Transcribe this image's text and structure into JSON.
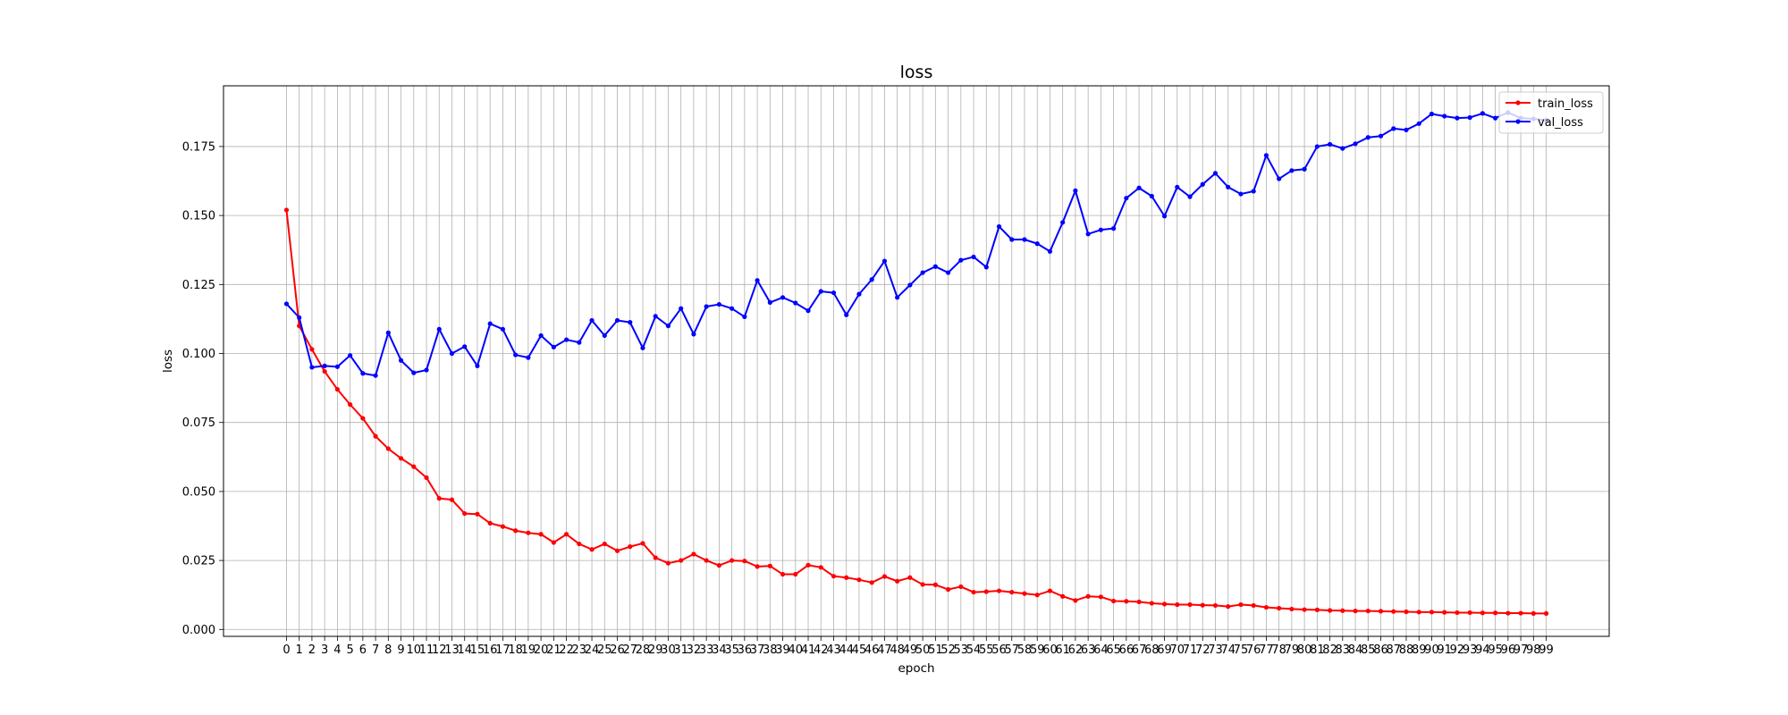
{
  "chart_data": {
    "type": "line",
    "title": "loss",
    "xlabel": "epoch",
    "ylabel": "loss",
    "x": [
      0,
      1,
      2,
      3,
      4,
      5,
      6,
      7,
      8,
      9,
      10,
      11,
      12,
      13,
      14,
      15,
      16,
      17,
      18,
      19,
      20,
      21,
      22,
      23,
      24,
      25,
      26,
      27,
      28,
      29,
      30,
      31,
      32,
      33,
      34,
      35,
      36,
      37,
      38,
      39,
      40,
      41,
      42,
      43,
      44,
      45,
      46,
      47,
      48,
      49,
      50,
      51,
      52,
      53,
      54,
      55,
      56,
      57,
      58,
      59,
      60,
      61,
      62,
      63,
      64,
      65,
      66,
      67,
      68,
      69,
      70,
      71,
      72,
      73,
      74,
      75,
      76,
      77,
      78,
      79,
      80,
      81,
      82,
      83,
      84,
      85,
      86,
      87,
      88,
      89,
      90,
      91,
      92,
      93,
      94,
      95,
      96,
      97,
      98,
      99
    ],
    "xlim": [
      -4.95,
      103.95
    ],
    "ylim": [
      -0.0025,
      0.197
    ],
    "yticks": [
      0.0,
      0.025,
      0.05,
      0.075,
      0.1,
      0.125,
      0.15,
      0.175
    ],
    "ytick_labels": [
      "0.000",
      "0.025",
      "0.050",
      "0.075",
      "0.100",
      "0.125",
      "0.150",
      "0.175"
    ],
    "grid": true,
    "legend_position": "top-right",
    "series": [
      {
        "name": "train_loss",
        "color": "#ff0000",
        "values": [
          0.152,
          0.11,
          0.1015,
          0.0935,
          0.087,
          0.0815,
          0.0765,
          0.07,
          0.0655,
          0.062,
          0.059,
          0.055,
          0.0475,
          0.047,
          0.042,
          0.0418,
          0.0385,
          0.0373,
          0.0358,
          0.035,
          0.0345,
          0.0315,
          0.0345,
          0.031,
          0.029,
          0.031,
          0.0285,
          0.03,
          0.0312,
          0.026,
          0.024,
          0.025,
          0.0273,
          0.025,
          0.0232,
          0.025,
          0.0248,
          0.0228,
          0.023,
          0.02,
          0.02,
          0.0233,
          0.0225,
          0.0193,
          0.0188,
          0.018,
          0.017,
          0.0192,
          0.0175,
          0.0188,
          0.0163,
          0.0162,
          0.0145,
          0.0155,
          0.0135,
          0.0137,
          0.014,
          0.0135,
          0.013,
          0.0125,
          0.014,
          0.012,
          0.0105,
          0.012,
          0.0118,
          0.0103,
          0.0102,
          0.01,
          0.0095,
          0.0092,
          0.009,
          0.009,
          0.0088,
          0.0087,
          0.0083,
          0.009,
          0.0087,
          0.008,
          0.0077,
          0.0074,
          0.0072,
          0.0071,
          0.0069,
          0.0068,
          0.0067,
          0.0067,
          0.0066,
          0.0065,
          0.0064,
          0.0063,
          0.0063,
          0.0062,
          0.0061,
          0.0061,
          0.006,
          0.006,
          0.0059,
          0.0059,
          0.0058,
          0.0058
        ]
      },
      {
        "name": "val_loss",
        "color": "#0000ff",
        "values": [
          0.118,
          0.113,
          0.095,
          0.0955,
          0.0952,
          0.0993,
          0.0928,
          0.092,
          0.1075,
          0.0975,
          0.093,
          0.094,
          0.1088,
          0.1,
          0.1025,
          0.0955,
          0.1108,
          0.1088,
          0.0995,
          0.0985,
          0.1065,
          0.1023,
          0.105,
          0.104,
          0.112,
          0.1065,
          0.112,
          0.1113,
          0.102,
          0.1135,
          0.11,
          0.1163,
          0.107,
          0.117,
          0.1178,
          0.1163,
          0.1133,
          0.1265,
          0.1185,
          0.1203,
          0.1183,
          0.1155,
          0.1225,
          0.122,
          0.114,
          0.1215,
          0.1268,
          0.1335,
          0.1203,
          0.1248,
          0.1293,
          0.1315,
          0.1293,
          0.1338,
          0.135,
          0.1313,
          0.146,
          0.1413,
          0.1413,
          0.1398,
          0.137,
          0.1475,
          0.159,
          0.1433,
          0.1448,
          0.1453,
          0.1563,
          0.16,
          0.157,
          0.1498,
          0.1603,
          0.1568,
          0.1613,
          0.1653,
          0.1603,
          0.1578,
          0.1588,
          0.1718,
          0.1633,
          0.1663,
          0.1668,
          0.175,
          0.1758,
          0.1743,
          0.176,
          0.1783,
          0.1788,
          0.1815,
          0.181,
          0.1833,
          0.1868,
          0.186,
          0.1853,
          0.1855,
          0.187,
          0.1853,
          0.1873,
          0.1853,
          0.185,
          0.1845
        ]
      }
    ]
  }
}
